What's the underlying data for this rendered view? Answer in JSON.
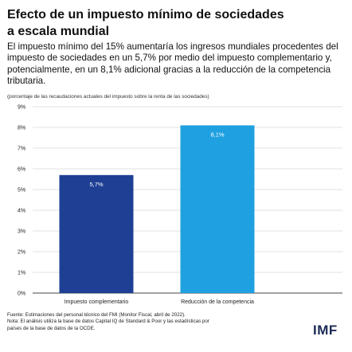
{
  "header": {
    "title_line1": "Efecto de un impuesto mínimo de sociedades",
    "title_line2": "a escala mundial",
    "subtitle": "El impuesto mínimo del 15% aumentaría los ingresos mundiales procedentes del impuesto de sociedades en un 5,7% por medio del impuesto complementario y, potencialmente, en un 8,1% adicional gracias a la reducción de la competencia tributaria.",
    "unit_note": "(porcentaje de las recaudaciones actuales del impuesto sobre la renta de las sociedades)"
  },
  "chart_data": {
    "type": "bar",
    "categories": [
      "Impuesto complementario",
      "Reducción de la competencia"
    ],
    "values": [
      5.7,
      8.1
    ],
    "value_labels": [
      "5,7%",
      "8,1%"
    ],
    "bar_colors": [
      "#1e3f94",
      "#1fa0e0"
    ],
    "ylim": [
      0,
      9
    ],
    "yticks": [
      0,
      1,
      2,
      3,
      4,
      5,
      6,
      7,
      8,
      9
    ],
    "ytick_labels": [
      "0%",
      "1%",
      "2%",
      "3%",
      "4%",
      "5%",
      "6%",
      "7%",
      "8%",
      "9%"
    ],
    "grid": true,
    "grid_color": "#d9d9d9",
    "legend": "none"
  },
  "footer": {
    "source_line1": "Fuente: Estimaciones del personal técnico del FMI (Monitor Fiscal, abril de 2022).",
    "source_line2": "Nota: El análisis utiliza la base de datos Capital IQ de Standard & Poor y las estadísticas por",
    "source_line3": "países de la base de datos de la OCDE.",
    "logo_text": "IMF"
  }
}
